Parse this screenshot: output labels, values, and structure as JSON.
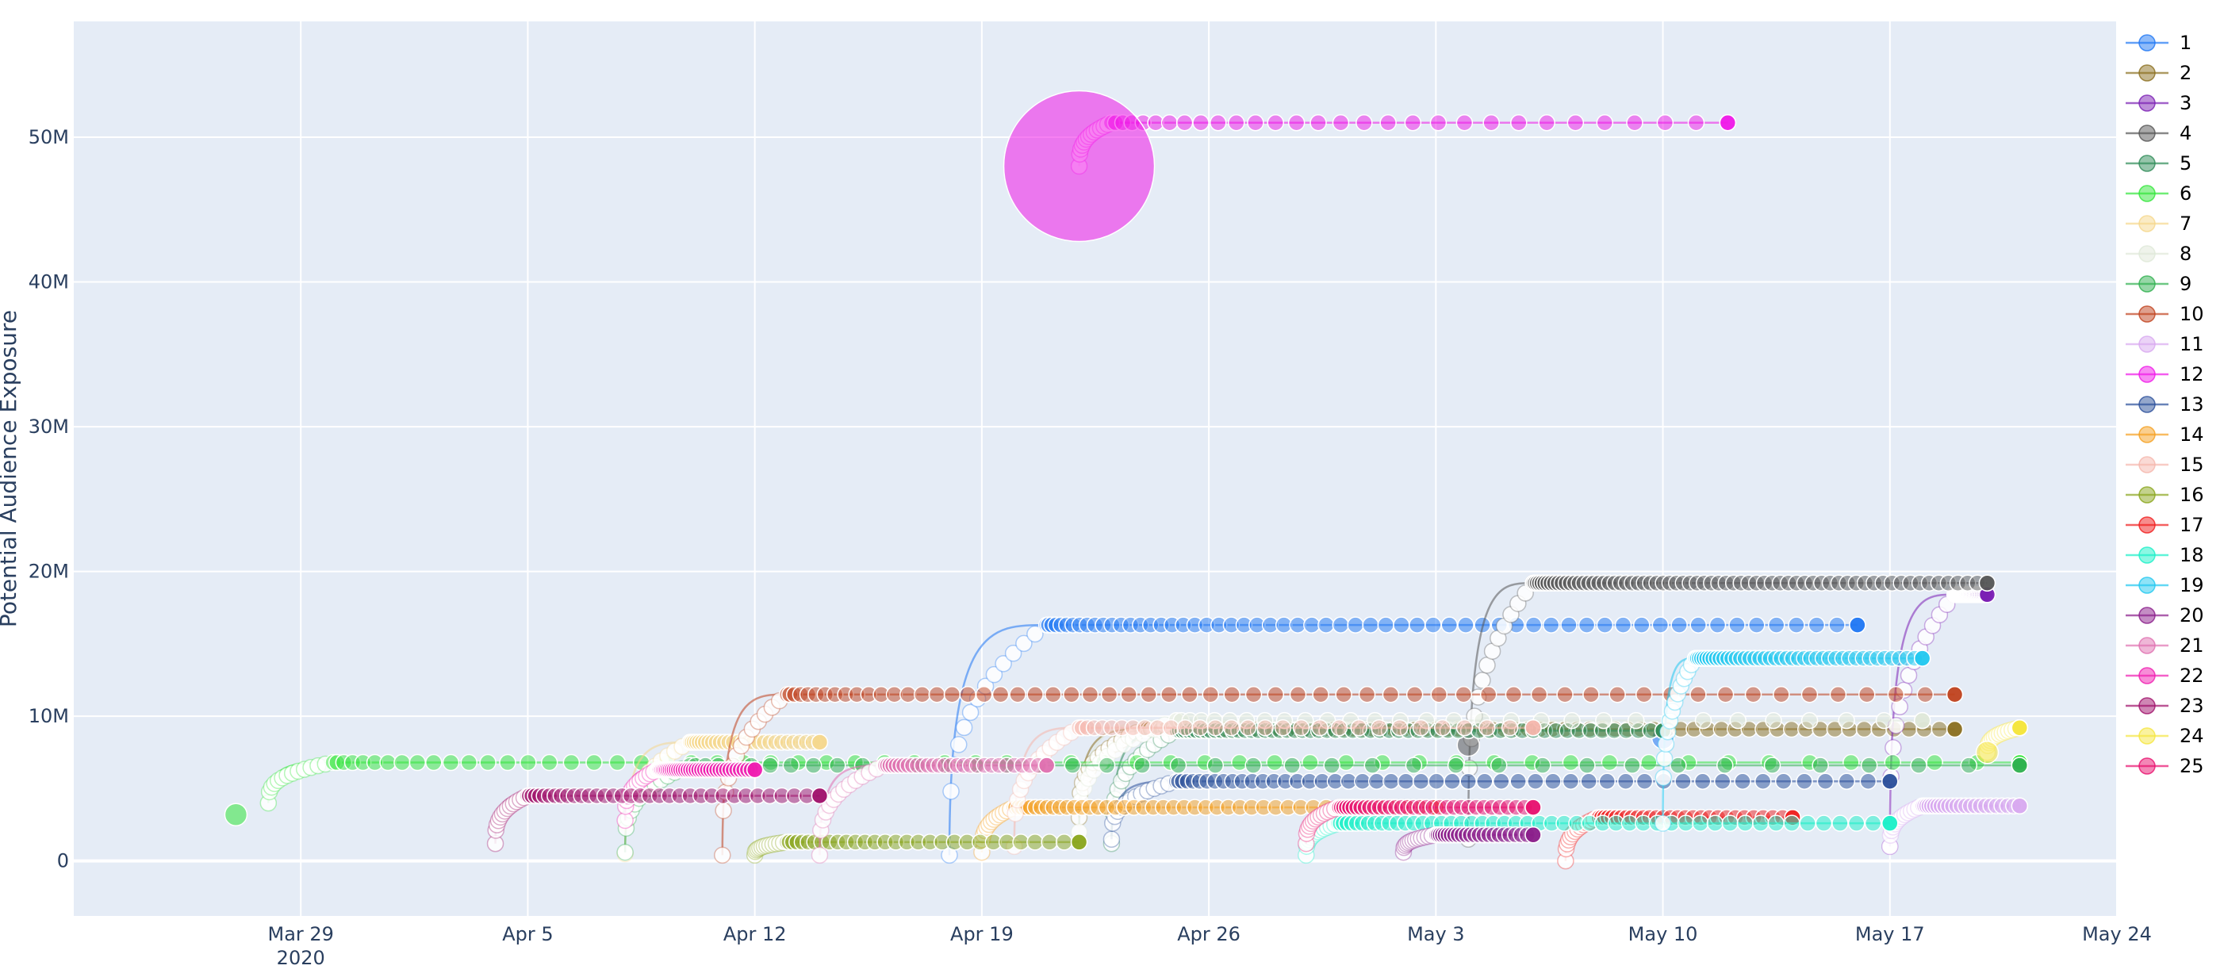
{
  "chart_data": {
    "type": "scatter",
    "ylabel": "Potential Audience Exposure",
    "xlabel": "",
    "x_range": [
      "2020-03-22",
      "2020-05-24"
    ],
    "ylim": [
      -3800000,
      58000000
    ],
    "x_ticks": [
      {
        "date": "2020-03-29",
        "label": "Mar 29",
        "sub": "2020"
      },
      {
        "date": "2020-04-05",
        "label": "Apr 5"
      },
      {
        "date": "2020-04-12",
        "label": "Apr 12"
      },
      {
        "date": "2020-04-19",
        "label": "Apr 19"
      },
      {
        "date": "2020-04-26",
        "label": "Apr 26"
      },
      {
        "date": "2020-05-03",
        "label": "May 3"
      },
      {
        "date": "2020-05-10",
        "label": "May 10"
      },
      {
        "date": "2020-05-17",
        "label": "May 17"
      },
      {
        "date": "2020-05-24",
        "label": "May 24"
      }
    ],
    "y_ticks": [
      {
        "value": 0,
        "label": "0"
      },
      {
        "value": 10000000,
        "label": "10M"
      },
      {
        "value": 20000000,
        "label": "20M"
      },
      {
        "value": 30000000,
        "label": "30M"
      },
      {
        "value": 40000000,
        "label": "40M"
      },
      {
        "value": 50000000,
        "label": "50M"
      }
    ],
    "plot_background": "#e5ecf6",
    "grid": true,
    "legend_position": "right",
    "series": [
      {
        "name": "1",
        "color": "#1f77f4",
        "start": "2020-04-18",
        "ramp_end": "2020-04-21",
        "end": "2020-05-16",
        "y0": 400000,
        "y1": 16300000,
        "n": 60,
        "big": {
          "x": "2020-05-10",
          "y": 8500000
        }
      },
      {
        "name": "2",
        "color": "#8b6f1f",
        "start": "2020-04-22",
        "ramp_end": "2020-04-24",
        "end": "2020-05-19",
        "y0": 3000000,
        "y1": 9100000,
        "n": 80
      },
      {
        "name": "3",
        "color": "#7b1fb4",
        "start": "2020-05-17",
        "ramp_end": "2020-05-19",
        "end": "2020-05-20",
        "y0": 1000000,
        "y1": 18400000,
        "n": 40
      },
      {
        "name": "4",
        "color": "#555555",
        "start": "2020-05-04",
        "ramp_end": "2020-05-06",
        "end": "2020-05-20",
        "y0": 1500000,
        "y1": 19200000,
        "n": 70,
        "big": {
          "x": "2020-05-04",
          "y": 8000000
        }
      },
      {
        "name": "5",
        "color": "#2e8b57",
        "start": "2020-04-23",
        "ramp_end": "2020-04-25",
        "end": "2020-05-10",
        "y0": 1200000,
        "y1": 9000000,
        "n": 60
      },
      {
        "name": "6",
        "color": "#32e63a",
        "start": "2020-03-28",
        "ramp_end": "2020-03-30",
        "end": "2020-05-21",
        "y0": 4000000,
        "y1": 6800000,
        "n": 60,
        "big": {
          "x": "2020-03-27",
          "y": 3200000
        }
      },
      {
        "name": "7",
        "color": "#f5d78c",
        "start": "2020-04-08",
        "ramp_end": "2020-04-10",
        "end": "2020-04-14",
        "y0": 500000,
        "y1": 8200000,
        "n": 30
      },
      {
        "name": "8",
        "color": "#dfe8d8",
        "start": "2020-04-22",
        "ramp_end": "2020-04-25",
        "end": "2020-05-18",
        "y0": 2000000,
        "y1": 9700000,
        "n": 30
      },
      {
        "name": "9",
        "color": "#2fb04f",
        "start": "2020-04-08",
        "ramp_end": "2020-04-10",
        "end": "2020-05-21",
        "y0": 600000,
        "y1": 6600000,
        "n": 40
      },
      {
        "name": "10",
        "color": "#c0421e",
        "start": "2020-04-11",
        "ramp_end": "2020-04-13",
        "end": "2020-05-19",
        "y0": 400000,
        "y1": 11500000,
        "n": 60
      },
      {
        "name": "11",
        "color": "#d8a8f0",
        "start": "2020-05-17",
        "ramp_end": "2020-05-18",
        "end": "2020-05-21",
        "y0": 1000000,
        "y1": 3800000,
        "n": 25
      },
      {
        "name": "12",
        "color": "#f018e8",
        "start": "2020-04-22",
        "ramp_end": "2020-04-23",
        "end": "2020-05-12",
        "y0": 48000000,
        "y1": 51000000,
        "n": 30,
        "big": {
          "x": "2020-04-22",
          "y": 48000000,
          "r": 95
        }
      },
      {
        "name": "13",
        "color": "#2a4f9a",
        "start": "2020-04-23",
        "ramp_end": "2020-04-25",
        "end": "2020-05-17",
        "y0": 1500000,
        "y1": 5500000,
        "n": 50
      },
      {
        "name": "14",
        "color": "#f5a020",
        "start": "2020-04-19",
        "ramp_end": "2020-04-20",
        "end": "2020-05-03",
        "y0": 600000,
        "y1": 3700000,
        "n": 45
      },
      {
        "name": "15",
        "color": "#f5b6ac",
        "start": "2020-04-20",
        "ramp_end": "2020-04-22",
        "end": "2020-05-06",
        "y0": 1000000,
        "y1": 9200000,
        "n": 30
      },
      {
        "name": "16",
        "color": "#8aa51c",
        "start": "2020-04-12",
        "ramp_end": "2020-04-13",
        "end": "2020-04-22",
        "y0": 400000,
        "y1": 1300000,
        "n": 30
      },
      {
        "name": "17",
        "color": "#f01c1c",
        "start": "2020-05-07",
        "ramp_end": "2020-05-08",
        "end": "2020-05-14",
        "y0": 0,
        "y1": 3000000,
        "n": 30
      },
      {
        "name": "18",
        "color": "#1af0c8",
        "start": "2020-04-29",
        "ramp_end": "2020-04-30",
        "end": "2020-05-17",
        "y0": 400000,
        "y1": 2600000,
        "n": 50
      },
      {
        "name": "19",
        "color": "#20c8f0",
        "start": "2020-05-10",
        "ramp_end": "2020-05-11",
        "end": "2020-05-18",
        "y0": 2600000,
        "y1": 14000000,
        "n": 45
      },
      {
        "name": "20",
        "color": "#8a1c8a",
        "start": "2020-05-02",
        "ramp_end": "2020-05-03",
        "end": "2020-05-06",
        "y0": 600000,
        "y1": 1800000,
        "n": 25
      },
      {
        "name": "21",
        "color": "#e070b0",
        "start": "2020-04-14",
        "ramp_end": "2020-04-16",
        "end": "2020-04-21",
        "y0": 400000,
        "y1": 6600000,
        "n": 30
      },
      {
        "name": "22",
        "color": "#f01cb0",
        "start": "2020-04-08",
        "ramp_end": "2020-04-09",
        "end": "2020-04-12",
        "y0": 2800000,
        "y1": 6300000,
        "n": 40
      },
      {
        "name": "23",
        "color": "#a0106a",
        "start": "2020-04-04",
        "ramp_end": "2020-04-05",
        "end": "2020-04-14",
        "y0": 1200000,
        "y1": 4500000,
        "n": 35
      },
      {
        "name": "24",
        "color": "#f5e640",
        "start": "2020-05-20",
        "ramp_end": "2020-05-21",
        "end": "2020-05-21",
        "y0": 7500000,
        "y1": 9200000,
        "n": 12,
        "big": {
          "x": "2020-05-20",
          "y": 7500000
        }
      },
      {
        "name": "25",
        "color": "#e8106e",
        "start": "2020-04-29",
        "ramp_end": "2020-04-30",
        "end": "2020-05-06",
        "y0": 1200000,
        "y1": 3700000,
        "n": 35
      }
    ]
  }
}
